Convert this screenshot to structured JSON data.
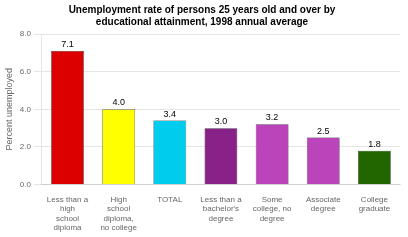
{
  "chart_data": {
    "type": "bar",
    "title": "Unemployment rate of persons 25 years old and over by\neducational attainment, 1998 annual average",
    "categories": [
      "Less than a\nhigh\nschool\ndiploma",
      "High\nschool\ndiploma,\nno college",
      "TOTAL",
      "Less than a\nbachelor's\ndegree",
      "Some\ncollege, no\ndegree",
      "Associate\ndegree",
      "College\ngraduate"
    ],
    "values": [
      7.1,
      4.0,
      3.4,
      3.0,
      3.2,
      2.5,
      1.8
    ],
    "value_labels": [
      "7.1",
      "4.0",
      "3.4",
      "3.0",
      "3.2",
      "2.5",
      "1.8"
    ],
    "colors": [
      "#dd0000",
      "#ffff00",
      "#00ccee",
      "#882288",
      "#bb44bb",
      "#bb44bb",
      "#226600"
    ],
    "ylabel": "Percent unemployed",
    "ylim": [
      0,
      8.0
    ],
    "yticks": [
      {
        "value": 0,
        "label": "0.0"
      },
      {
        "value": 2,
        "label": "2.0"
      },
      {
        "value": 4,
        "label": "4.0"
      },
      {
        "value": 6,
        "label": "6.0"
      },
      {
        "value": 8,
        "label": "8.0"
      }
    ],
    "grid": true,
    "data_labels": true
  }
}
